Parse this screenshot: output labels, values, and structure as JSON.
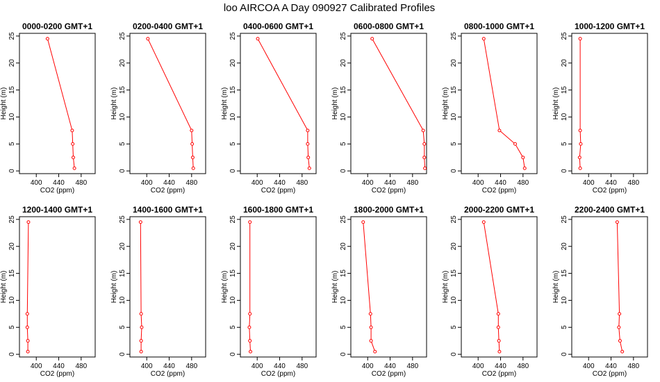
{
  "title": "loo AIRCOA A  Day 090927  Calibrated Profiles",
  "chart_data": [
    {
      "type": "line",
      "title": "0000-0200 GMT+1",
      "xlabel": "CO2 (ppm)",
      "ylabel": "Height (m)",
      "xlim": [
        370,
        505
      ],
      "ylim": [
        -0.5,
        25.5
      ],
      "x_ticks": [
        400,
        440,
        480
      ],
      "y_ticks": [
        0,
        5,
        10,
        15,
        20,
        25
      ],
      "series": [
        {
          "color": "#ff0000",
          "points": [
            [
              420,
              24.5
            ],
            [
              464,
              7.5
            ],
            [
              465,
              5
            ],
            [
              466,
              2.5
            ],
            [
              468,
              0.5
            ]
          ]
        }
      ]
    },
    {
      "type": "line",
      "title": "0200-0400 GMT+1",
      "xlabel": "CO2 (ppm)",
      "ylabel": "Height (m)",
      "xlim": [
        370,
        505
      ],
      "ylim": [
        -0.5,
        25.5
      ],
      "x_ticks": [
        400,
        440,
        480
      ],
      "y_ticks": [
        0,
        5,
        10,
        15,
        20,
        25
      ],
      "series": [
        {
          "color": "#ff0000",
          "points": [
            [
              402,
              24.5
            ],
            [
              480,
              7.5
            ],
            [
              481,
              5
            ],
            [
              482,
              2.5
            ],
            [
              483,
              0.5
            ]
          ]
        }
      ]
    },
    {
      "type": "line",
      "title": "0400-0600 GMT+1",
      "xlabel": "CO2 (ppm)",
      "ylabel": "Height (m)",
      "xlim": [
        370,
        505
      ],
      "ylim": [
        -0.5,
        25.5
      ],
      "x_ticks": [
        400,
        440,
        480
      ],
      "y_ticks": [
        0,
        5,
        10,
        15,
        20,
        25
      ],
      "series": [
        {
          "color": "#ff0000",
          "points": [
            [
              401,
              24.5
            ],
            [
              490,
              7.5
            ],
            [
              490,
              5
            ],
            [
              491,
              2.5
            ],
            [
              493,
              0.5
            ]
          ]
        }
      ]
    },
    {
      "type": "line",
      "title": "0600-0800 GMT+1",
      "xlabel": "CO2 (ppm)",
      "ylabel": "Height (m)",
      "xlim": [
        370,
        505
      ],
      "ylim": [
        -0.5,
        25.5
      ],
      "x_ticks": [
        400,
        440,
        480
      ],
      "y_ticks": [
        0,
        5,
        10,
        15,
        20,
        25
      ],
      "series": [
        {
          "color": "#ff0000",
          "points": [
            [
              408,
              24.5
            ],
            [
              499,
              7.5
            ],
            [
              501,
              5
            ],
            [
              501,
              2.5
            ],
            [
              502,
              0.5
            ]
          ]
        }
      ]
    },
    {
      "type": "line",
      "title": "0800-1000 GMT+1",
      "xlabel": "CO2 (ppm)",
      "ylabel": "Height (m)",
      "xlim": [
        370,
        505
      ],
      "ylim": [
        -0.5,
        25.5
      ],
      "x_ticks": [
        400,
        440,
        480
      ],
      "y_ticks": [
        0,
        5,
        10,
        15,
        20,
        25
      ],
      "series": [
        {
          "color": "#ff0000",
          "points": [
            [
              410,
              24.5
            ],
            [
              438,
              7.5
            ],
            [
              466,
              5
            ],
            [
              480,
              2.5
            ],
            [
              483,
              0.5
            ]
          ]
        }
      ]
    },
    {
      "type": "line",
      "title": "1000-1200 GMT+1",
      "xlabel": "CO2 (ppm)",
      "ylabel": "Height (m)",
      "xlim": [
        370,
        505
      ],
      "ylim": [
        -0.5,
        25.5
      ],
      "x_ticks": [
        400,
        440,
        480
      ],
      "y_ticks": [
        0,
        5,
        10,
        15,
        20,
        25
      ],
      "series": [
        {
          "color": "#ff0000",
          "points": [
            [
              385,
              24.5
            ],
            [
              385,
              7.5
            ],
            [
              386,
              5
            ],
            [
              384,
              2.5
            ],
            [
              385,
              0.5
            ]
          ]
        }
      ]
    },
    {
      "type": "line",
      "title": "1200-1400 GMT+1",
      "xlabel": "CO2 (ppm)",
      "ylabel": "Height (m)",
      "xlim": [
        370,
        505
      ],
      "ylim": [
        -0.5,
        25.5
      ],
      "x_ticks": [
        400,
        440,
        480
      ],
      "y_ticks": [
        0,
        5,
        10,
        15,
        20,
        25
      ],
      "series": [
        {
          "color": "#ff0000",
          "points": [
            [
              386,
              24.5
            ],
            [
              384,
              7.5
            ],
            [
              384,
              5
            ],
            [
              385,
              2.5
            ],
            [
              385,
              0.5
            ]
          ]
        }
      ]
    },
    {
      "type": "line",
      "title": "1400-1600 GMT+1",
      "xlabel": "CO2 (ppm)",
      "ylabel": "Height (m)",
      "xlim": [
        370,
        505
      ],
      "ylim": [
        -0.5,
        25.5
      ],
      "x_ticks": [
        400,
        440,
        480
      ],
      "y_ticks": [
        0,
        5,
        10,
        15,
        20,
        25
      ],
      "series": [
        {
          "color": "#ff0000",
          "points": [
            [
              389,
              24.5
            ],
            [
              390,
              7.5
            ],
            [
              391,
              5
            ],
            [
              390,
              2.5
            ],
            [
              390,
              0.5
            ]
          ]
        }
      ]
    },
    {
      "type": "line",
      "title": "1600-1800 GMT+1",
      "xlabel": "CO2 (ppm)",
      "ylabel": "Height (m)",
      "xlim": [
        370,
        505
      ],
      "ylim": [
        -0.5,
        25.5
      ],
      "x_ticks": [
        400,
        440,
        480
      ],
      "y_ticks": [
        0,
        5,
        10,
        15,
        20,
        25
      ],
      "series": [
        {
          "color": "#ff0000",
          "points": [
            [
              387,
              24.5
            ],
            [
              387,
              7.5
            ],
            [
              386,
              5
            ],
            [
              387,
              2.5
            ],
            [
              388,
              0.5
            ]
          ]
        }
      ]
    },
    {
      "type": "line",
      "title": "1800-2000 GMT+1",
      "xlabel": "CO2 (ppm)",
      "ylabel": "Height (m)",
      "xlim": [
        370,
        505
      ],
      "ylim": [
        -0.5,
        25.5
      ],
      "x_ticks": [
        400,
        440,
        480
      ],
      "y_ticks": [
        0,
        5,
        10,
        15,
        20,
        25
      ],
      "series": [
        {
          "color": "#ff0000",
          "points": [
            [
              392,
              24.5
            ],
            [
              405,
              7.5
            ],
            [
              406,
              5
            ],
            [
              406,
              2.5
            ],
            [
              413,
              0.5
            ]
          ]
        }
      ]
    },
    {
      "type": "line",
      "title": "2000-2200 GMT+1",
      "xlabel": "CO2 (ppm)",
      "ylabel": "Height (m)",
      "xlim": [
        370,
        505
      ],
      "ylim": [
        -0.5,
        25.5
      ],
      "x_ticks": [
        400,
        440,
        480
      ],
      "y_ticks": [
        0,
        5,
        10,
        15,
        20,
        25
      ],
      "series": [
        {
          "color": "#ff0000",
          "points": [
            [
              410,
              24.5
            ],
            [
              436,
              7.5
            ],
            [
              436,
              5
            ],
            [
              437,
              2.5
            ],
            [
              438,
              0.5
            ]
          ]
        }
      ]
    },
    {
      "type": "line",
      "title": "2200-2400 GMT+1",
      "xlabel": "CO2 (ppm)",
      "ylabel": "Height (m)",
      "xlim": [
        370,
        505
      ],
      "ylim": [
        -0.5,
        25.5
      ],
      "x_ticks": [
        400,
        440,
        480
      ],
      "y_ticks": [
        0,
        5,
        10,
        15,
        20,
        25
      ],
      "series": [
        {
          "color": "#ff0000",
          "points": [
            [
              451,
              24.5
            ],
            [
              455,
              7.5
            ],
            [
              454,
              5
            ],
            [
              456,
              2.5
            ],
            [
              460,
              0.5
            ]
          ]
        }
      ]
    }
  ]
}
